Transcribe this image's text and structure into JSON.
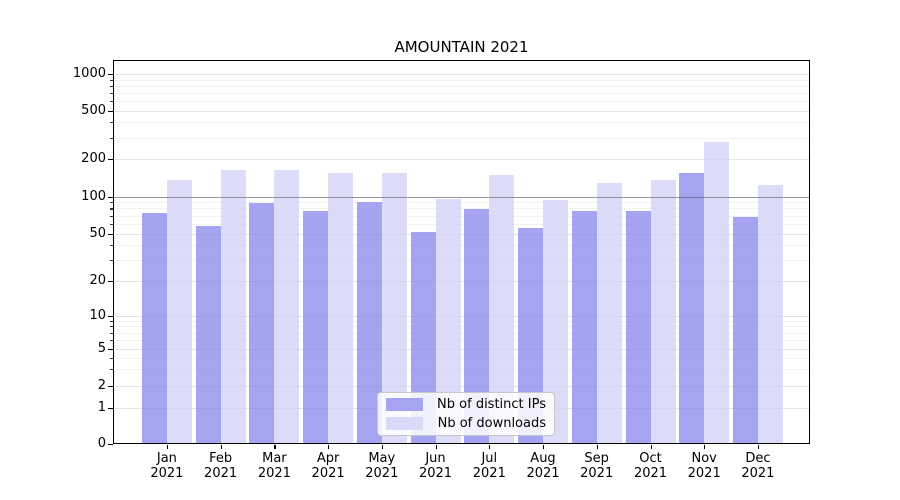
{
  "chart_data": {
    "type": "bar",
    "title": "AMOUNTAIN 2021",
    "categories": [
      "Jan 2021",
      "Feb 2021",
      "Mar 2021",
      "Apr 2021",
      "May 2021",
      "Jun 2021",
      "Jul 2021",
      "Aug 2021",
      "Sep 2021",
      "Oct 2021",
      "Nov 2021",
      "Dec 2021"
    ],
    "series": [
      {
        "name": "Nb of distinct IPs",
        "color": "rgba(129,129,235,0.72)",
        "solid_color": "#a4a4f0",
        "values": [
          74,
          58,
          89,
          77,
          91,
          51,
          79,
          55,
          76,
          76,
          155,
          68
        ]
      },
      {
        "name": "Nb of downloads",
        "color": "rgba(206,206,246,0.72)",
        "solid_color": "#dadaf8",
        "values": [
          137,
          163,
          163,
          154,
          154,
          95,
          150,
          94,
          128,
          135,
          275,
          124
        ]
      }
    ],
    "yscale": "symlog",
    "y_ticks": [
      0,
      1,
      2,
      5,
      10,
      20,
      50,
      100,
      200,
      500,
      1000
    ],
    "y_minor_ticks": [
      3,
      4,
      6,
      7,
      8,
      9,
      30,
      40,
      60,
      70,
      80,
      90,
      300,
      400,
      600,
      700,
      800,
      900
    ],
    "ylim": [
      0,
      1300
    ],
    "xlabel": "",
    "ylabel": "",
    "grid": true,
    "emphasis_gridline_value": 100,
    "legend_position": "lower center"
  },
  "colors": {
    "bar_distinct_ips": "#a4a4f0",
    "bar_downloads": "#dadaf8",
    "grid_major": "#e4e4e4",
    "grid_minor": "#f2f2f2",
    "emphasis_line": "#b0b0b0",
    "spine": "#000000",
    "background": "#ffffff"
  }
}
